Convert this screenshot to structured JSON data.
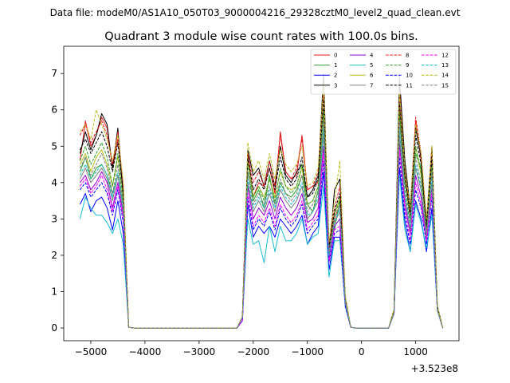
{
  "chart_data": {
    "type": "line",
    "suptitle": "Data file: modeM0/AS1A10_050T03_9000004216_29328cztM0_level2_quad_clean.evt",
    "title": "Quadrant 3 module wise count rates with 100.0s bins.",
    "xlabel": "",
    "ylabel": "",
    "offset_text": "+3.523e8",
    "xlim": [
      -5500,
      1800
    ],
    "ylim": [
      -0.35,
      7.75
    ],
    "xticks": [
      -5000,
      -4000,
      -3000,
      -2000,
      -1000,
      0,
      1000
    ],
    "xtick_labels": [
      "−5000",
      "−4000",
      "−3000",
      "−2000",
      "−1000",
      "0",
      "1000"
    ],
    "yticks": [
      0,
      1,
      2,
      3,
      4,
      5,
      6,
      7
    ],
    "ytick_labels": [
      "0",
      "1",
      "2",
      "3",
      "4",
      "5",
      "6",
      "7"
    ],
    "legend_position": "upper right",
    "x": [
      -5200,
      -5100,
      -5000,
      -4900,
      -4800,
      -4700,
      -4600,
      -4500,
      -4400,
      -4300,
      -4200,
      -4100,
      -4000,
      -3900,
      -3800,
      -3700,
      -3600,
      -3500,
      -3400,
      -3300,
      -3200,
      -3100,
      -3000,
      -2900,
      -2800,
      -2700,
      -2600,
      -2500,
      -2400,
      -2300,
      -2200,
      -2100,
      -2000,
      -1900,
      -1800,
      -1700,
      -1600,
      -1500,
      -1400,
      -1300,
      -1200,
      -1100,
      -1000,
      -900,
      -800,
      -700,
      -600,
      -500,
      -400,
      -300,
      -200,
      -100,
      0,
      100,
      200,
      300,
      400,
      500,
      600,
      700,
      800,
      900,
      1000,
      1100,
      1200,
      1300,
      1400,
      1500
    ],
    "series": [
      {
        "name": "0",
        "color": "#e41a1c",
        "dash": "solid",
        "values": [
          4.6,
          5.7,
          5.0,
          5.3,
          5.8,
          5.5,
          4.4,
          5.2,
          3.8,
          0.02,
          0,
          0,
          0,
          0,
          0,
          0,
          0,
          0,
          0,
          0,
          0,
          0,
          0,
          0,
          0,
          0,
          0,
          0,
          0,
          0,
          0.3,
          4.8,
          3.6,
          4.0,
          3.9,
          4.4,
          3.7,
          5.4,
          4.3,
          4.1,
          4.2,
          5.3,
          3.8,
          3.9,
          4.0,
          6.8,
          2.1,
          3.0,
          3.4,
          0.8,
          0.02,
          0,
          0,
          0,
          0,
          0,
          0,
          0,
          0.5,
          6.6,
          4.5,
          3.2,
          5.7,
          4.6,
          2.7,
          4.8,
          0.5,
          0
        ]
      },
      {
        "name": "1",
        "color": "#2ca02c",
        "dash": "solid",
        "values": [
          4.3,
          4.7,
          4.1,
          4.4,
          4.5,
          4.2,
          3.7,
          4.2,
          3.4,
          0.02,
          0,
          0,
          0,
          0,
          0,
          0,
          0,
          0,
          0,
          0,
          0,
          0,
          0,
          0,
          0,
          0,
          0,
          0,
          0,
          0,
          0.3,
          4.3,
          3.5,
          3.8,
          3.3,
          4.2,
          3.4,
          4.0,
          3.7,
          3.6,
          3.8,
          4.2,
          3.4,
          3.2,
          3.8,
          5.6,
          2.3,
          2.7,
          3.5,
          0.8,
          0.02,
          0,
          0,
          0,
          0,
          0,
          0,
          0,
          0.5,
          5.8,
          4.0,
          3.3,
          4.8,
          4.4,
          3.0,
          4.3,
          0.6,
          0
        ]
      },
      {
        "name": "2",
        "color": "#0000ff",
        "dash": "solid",
        "values": [
          3.4,
          3.7,
          3.2,
          3.5,
          3.6,
          3.3,
          2.7,
          3.5,
          2.6,
          0.02,
          0,
          0,
          0,
          0,
          0,
          0,
          0,
          0,
          0,
          0,
          0,
          0,
          0,
          0,
          0,
          0,
          0,
          0,
          0,
          0,
          0.2,
          3.4,
          2.5,
          2.8,
          2.6,
          2.8,
          2.5,
          3.0,
          2.8,
          2.6,
          2.8,
          3.1,
          2.3,
          2.6,
          2.8,
          4.3,
          1.6,
          2.5,
          2.5,
          0.6,
          0.02,
          0,
          0,
          0,
          0,
          0,
          0,
          0,
          0.4,
          4.4,
          2.9,
          2.1,
          3.5,
          3.0,
          2.1,
          3.3,
          0.5,
          0
        ]
      },
      {
        "name": "3",
        "color": "#000000",
        "dash": "solid",
        "values": [
          4.8,
          5.4,
          4.9,
          5.3,
          5.9,
          5.6,
          4.4,
          5.5,
          3.6,
          0.02,
          0,
          0,
          0,
          0,
          0,
          0,
          0,
          0,
          0,
          0,
          0,
          0,
          0,
          0,
          0,
          0,
          0,
          0,
          0,
          0,
          0.3,
          4.9,
          4.2,
          4.4,
          3.9,
          4.6,
          3.9,
          5.0,
          4.2,
          4.0,
          4.3,
          4.5,
          3.6,
          3.8,
          4.2,
          7.0,
          1.9,
          3.8,
          4.1,
          0.8,
          0.02,
          0,
          0,
          0,
          0,
          0,
          0,
          0,
          0.5,
          6.9,
          4.6,
          3.3,
          5.5,
          4.7,
          2.9,
          5.0,
          0.5,
          0
        ]
      },
      {
        "name": "4",
        "color": "#9400d3",
        "dash": "solid",
        "values": [
          4.0,
          4.2,
          3.8,
          4.0,
          4.3,
          4.0,
          3.3,
          4.0,
          3.1,
          0.02,
          0,
          0,
          0,
          0,
          0,
          0,
          0,
          0,
          0,
          0,
          0,
          0,
          0,
          0,
          0,
          0,
          0,
          0,
          0,
          0,
          0.3,
          3.9,
          3.0,
          3.3,
          3.1,
          3.5,
          3.0,
          3.6,
          3.3,
          3.1,
          3.3,
          3.7,
          2.9,
          3.0,
          3.3,
          5.0,
          1.9,
          2.8,
          3.0,
          0.7,
          0.02,
          0,
          0,
          0,
          0,
          0,
          0,
          0,
          0.4,
          5.1,
          3.4,
          2.6,
          4.2,
          3.6,
          2.4,
          3.9,
          0.5,
          0
        ]
      },
      {
        "name": "5",
        "color": "#17becf",
        "dash": "solid",
        "values": [
          3.0,
          3.6,
          3.3,
          3.1,
          3.1,
          2.9,
          2.6,
          3.0,
          2.3,
          0.02,
          0,
          0,
          0,
          0,
          0,
          0,
          0,
          0,
          0,
          0,
          0,
          0,
          0,
          0,
          0,
          0,
          0,
          0,
          0,
          0,
          0.2,
          3.0,
          2.3,
          2.4,
          1.8,
          2.8,
          2.1,
          2.8,
          2.4,
          2.4,
          2.6,
          3.0,
          2.3,
          2.5,
          2.6,
          3.9,
          1.4,
          2.4,
          2.4,
          0.6,
          0.02,
          0,
          0,
          0,
          0,
          0,
          0,
          0,
          0.4,
          4.2,
          2.7,
          2.1,
          3.4,
          2.9,
          2.2,
          3.1,
          0.5,
          0
        ]
      },
      {
        "name": "6",
        "color": "#bcbd22",
        "dash": "solid",
        "values": [
          4.5,
          4.8,
          4.3,
          4.7,
          4.9,
          4.5,
          3.9,
          4.7,
          3.5,
          0.02,
          0,
          0,
          0,
          0,
          0,
          0,
          0,
          0,
          0,
          0,
          0,
          0,
          0,
          0,
          0,
          0,
          0,
          0,
          0,
          0,
          0.3,
          4.6,
          3.6,
          3.9,
          3.6,
          4.1,
          3.6,
          4.3,
          3.9,
          3.8,
          3.9,
          4.4,
          3.4,
          3.5,
          3.9,
          6.0,
          2.2,
          3.1,
          3.6,
          0.8,
          0.02,
          0,
          0,
          0,
          0,
          0,
          0,
          0,
          0.5,
          6.0,
          4.1,
          3.0,
          5.0,
          4.2,
          2.8,
          4.5,
          0.6,
          0
        ]
      },
      {
        "name": "7",
        "color": "#7f7f7f",
        "dash": "solid",
        "values": [
          4.1,
          4.4,
          4.0,
          4.2,
          4.4,
          4.1,
          3.5,
          4.2,
          3.2,
          0.02,
          0,
          0,
          0,
          0,
          0,
          0,
          0,
          0,
          0,
          0,
          0,
          0,
          0,
          0,
          0,
          0,
          0,
          0,
          0,
          0,
          0.3,
          4.0,
          3.2,
          3.5,
          3.2,
          3.7,
          3.2,
          3.8,
          3.5,
          3.3,
          3.5,
          3.9,
          3.0,
          3.2,
          3.5,
          5.3,
          2.0,
          2.9,
          3.2,
          0.7,
          0.02,
          0,
          0,
          0,
          0,
          0,
          0,
          0,
          0.4,
          5.3,
          3.6,
          2.7,
          4.4,
          3.8,
          2.5,
          4.0,
          0.5,
          0
        ]
      },
      {
        "name": "8",
        "color": "#e41a1c",
        "dash": "dashed",
        "values": [
          5.3,
          5.6,
          5.1,
          5.4,
          5.7,
          5.3,
          4.5,
          5.4,
          3.9,
          0.02,
          0,
          0,
          0,
          0,
          0,
          0,
          0,
          0,
          0,
          0,
          0,
          0,
          0,
          0,
          0,
          0,
          0,
          0,
          0,
          0,
          0.3,
          4.8,
          4.0,
          4.3,
          3.9,
          4.6,
          3.9,
          5.3,
          4.3,
          4.1,
          4.4,
          5.2,
          3.8,
          3.9,
          4.3,
          6.5,
          2.3,
          3.3,
          3.9,
          0.8,
          0.02,
          0,
          0,
          0,
          0,
          0,
          0,
          0,
          0.5,
          6.3,
          4.3,
          3.2,
          5.8,
          4.8,
          2.9,
          5.0,
          0.6,
          0
        ]
      },
      {
        "name": "9",
        "color": "#2ca02c",
        "dash": "dashed",
        "values": [
          4.6,
          5.0,
          4.5,
          4.8,
          5.1,
          4.7,
          3.9,
          4.8,
          3.5,
          0.02,
          0,
          0,
          0,
          0,
          0,
          0,
          0,
          0,
          0,
          0,
          0,
          0,
          0,
          0,
          0,
          0,
          0,
          0,
          0,
          0,
          0.3,
          4.5,
          3.6,
          3.9,
          3.5,
          4.1,
          3.5,
          4.4,
          3.9,
          3.7,
          3.9,
          4.5,
          3.4,
          3.5,
          3.9,
          6.0,
          2.1,
          3.1,
          3.5,
          0.8,
          0.02,
          0,
          0,
          0,
          0,
          0,
          0,
          0,
          0.5,
          5.9,
          4.0,
          3.0,
          5.0,
          4.3,
          2.7,
          4.5,
          0.5,
          0
        ]
      },
      {
        "name": "10",
        "color": "#0000ff",
        "dash": "dashed",
        "values": [
          3.8,
          4.0,
          3.6,
          3.8,
          4.0,
          3.7,
          3.1,
          3.8,
          2.9,
          0.02,
          0,
          0,
          0,
          0,
          0,
          0,
          0,
          0,
          0,
          0,
          0,
          0,
          0,
          0,
          0,
          0,
          0,
          0,
          0,
          0,
          0.2,
          3.6,
          2.7,
          3.0,
          2.8,
          3.2,
          2.7,
          3.3,
          3.0,
          2.8,
          3.0,
          3.4,
          2.6,
          2.8,
          3.0,
          4.6,
          1.8,
          2.6,
          2.7,
          0.6,
          0.02,
          0,
          0,
          0,
          0,
          0,
          0,
          0,
          0.4,
          4.7,
          3.1,
          2.3,
          3.8,
          3.3,
          2.3,
          3.6,
          0.5,
          0
        ]
      },
      {
        "name": "11",
        "color": "#000000",
        "dash": "dashed",
        "values": [
          4.9,
          5.2,
          4.8,
          5.1,
          5.4,
          5.0,
          4.3,
          5.1,
          3.7,
          0.02,
          0,
          0,
          0,
          0,
          0,
          0,
          0,
          0,
          0,
          0,
          0,
          0,
          0,
          0,
          0,
          0,
          0,
          0,
          0,
          0,
          0.3,
          4.7,
          3.8,
          4.1,
          3.8,
          4.4,
          3.8,
          4.7,
          4.1,
          3.9,
          4.1,
          4.7,
          3.6,
          3.7,
          4.1,
          6.3,
          2.2,
          3.2,
          3.7,
          0.8,
          0.02,
          0,
          0,
          0,
          0,
          0,
          0,
          0,
          0.5,
          6.2,
          4.2,
          3.1,
          5.3,
          4.5,
          2.8,
          4.7,
          0.6,
          0
        ]
      },
      {
        "name": "12",
        "color": "#ff00ff",
        "dash": "dashed",
        "values": [
          3.9,
          4.1,
          3.7,
          3.9,
          4.2,
          3.8,
          3.2,
          3.9,
          3.0,
          0.02,
          0,
          0,
          0,
          0,
          0,
          0,
          0,
          0,
          0,
          0,
          0,
          0,
          0,
          0,
          0,
          0,
          0,
          0,
          0,
          0,
          0.2,
          3.7,
          2.8,
          3.1,
          2.9,
          3.3,
          2.8,
          3.4,
          3.1,
          2.9,
          3.1,
          3.5,
          2.7,
          2.9,
          3.1,
          4.8,
          1.8,
          2.7,
          2.8,
          0.7,
          0.02,
          0,
          0,
          0,
          0,
          0,
          0,
          0,
          0.4,
          4.9,
          3.3,
          2.4,
          4.0,
          3.4,
          2.4,
          3.7,
          0.5,
          0
        ]
      },
      {
        "name": "13",
        "color": "#17becf",
        "dash": "dashed",
        "values": [
          4.2,
          4.5,
          4.1,
          4.3,
          4.5,
          4.2,
          3.6,
          4.3,
          3.3,
          0.02,
          0,
          0,
          0,
          0,
          0,
          0,
          0,
          0,
          0,
          0,
          0,
          0,
          0,
          0,
          0,
          0,
          0,
          0,
          0,
          0,
          0.3,
          4.1,
          3.3,
          3.6,
          3.3,
          3.8,
          3.3,
          3.9,
          3.6,
          3.4,
          3.6,
          4.0,
          3.1,
          3.2,
          3.6,
          5.5,
          2.0,
          2.9,
          3.3,
          0.7,
          0.02,
          0,
          0,
          0,
          0,
          0,
          0,
          0,
          0.4,
          5.5,
          3.7,
          2.8,
          4.5,
          3.9,
          2.6,
          4.1,
          0.5,
          0
        ]
      },
      {
        "name": "14",
        "color": "#bcbd22",
        "dash": "dashed",
        "values": [
          5.4,
          5.6,
          5.2,
          6.0,
          5.6,
          5.2,
          4.6,
          5.3,
          4.0,
          0.02,
          0,
          0,
          0,
          0,
          0,
          0,
          0,
          0,
          0,
          0,
          0,
          0,
          0,
          0,
          0,
          0,
          0,
          0,
          0,
          0,
          0.3,
          5.1,
          4.3,
          4.6,
          4.1,
          4.8,
          4.1,
          4.9,
          4.5,
          4.3,
          4.5,
          5.0,
          3.9,
          4.0,
          4.4,
          6.7,
          2.4,
          3.5,
          4.6,
          0.9,
          0.02,
          0,
          0,
          0,
          0,
          0,
          0,
          0,
          0.5,
          6.5,
          4.4,
          3.3,
          5.6,
          4.8,
          3.0,
          5.0,
          0.6,
          0
        ]
      },
      {
        "name": "15",
        "color": "#7f7f7f",
        "dash": "dashed",
        "values": [
          4.4,
          4.7,
          4.2,
          4.5,
          4.8,
          4.4,
          3.7,
          4.5,
          3.4,
          0.02,
          0,
          0,
          0,
          0,
          0,
          0,
          0,
          0,
          0,
          0,
          0,
          0,
          0,
          0,
          0,
          0,
          0,
          0,
          0,
          0,
          0.3,
          4.3,
          3.4,
          3.7,
          3.4,
          3.9,
          3.4,
          4.1,
          3.7,
          3.5,
          3.7,
          4.2,
          3.2,
          3.4,
          3.7,
          5.7,
          2.1,
          3.0,
          3.4,
          0.7,
          0.02,
          0,
          0,
          0,
          0,
          0,
          0,
          0,
          0.4,
          5.7,
          3.8,
          2.9,
          4.7,
          4.0,
          2.6,
          4.3,
          0.5,
          0
        ]
      }
    ]
  }
}
